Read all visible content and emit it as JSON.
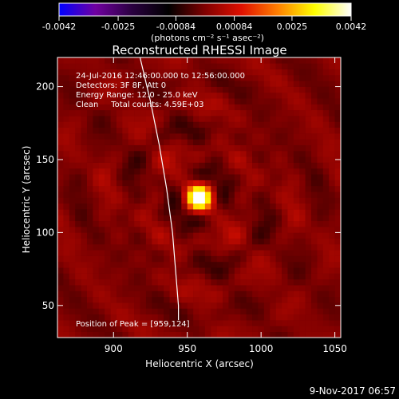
{
  "chart_data": {
    "type": "heatmap",
    "title": "Reconstructed RHESSI Image",
    "xlabel": "Heliocentric X (arcsec)",
    "ylabel": "Heliocentric Y (arcsec)",
    "xlim": [
      862,
      1054
    ],
    "ylim": [
      28,
      220
    ],
    "x_ticks": [
      900,
      950,
      1000,
      1050
    ],
    "y_ticks": [
      50,
      100,
      150,
      200
    ],
    "grid": false,
    "colorbar": {
      "range": [
        -0.0042,
        0.0042
      ],
      "ticks": [
        -0.0042,
        -0.0025,
        -0.00084,
        0.00084,
        0.0025,
        0.0042
      ],
      "tick_labels": [
        "-0.0042",
        "-0.0025",
        "-0.00084",
        "0.00084",
        "0.0025",
        "0.0042"
      ],
      "units_label": "(photons cm⁻² s⁻¹ asec⁻²)",
      "colormap": [
        "#0000ff",
        "#7000a0",
        "#2a0040",
        "#000000",
        "#800000",
        "#e01000",
        "#ff8000",
        "#ffff00",
        "#ffffff"
      ]
    },
    "info_lines": [
      "24-Jul-2016 12:46:00.000 to 12:56:00.000",
      "Detectors: 3F 8F, Att 0",
      "Energy Range: 12.0 - 25.0 keV",
      "Clean     Total counts: 4.59E+03"
    ],
    "peak_label": "Position of Peak = [959,124]",
    "peak": [
      959,
      124
    ],
    "source": {
      "x": 958,
      "y": 124,
      "peak": 0.0042,
      "sigma": 6
    },
    "limb_curve": [
      [
        918,
        220
      ],
      [
        925,
        190
      ],
      [
        931,
        160
      ],
      [
        936,
        130
      ],
      [
        940,
        100
      ],
      [
        942,
        75
      ],
      [
        944,
        50
      ],
      [
        944,
        40
      ]
    ],
    "limb_color": "#ffffff"
  },
  "footer": {
    "date": "9-Nov-2017 06:57"
  }
}
